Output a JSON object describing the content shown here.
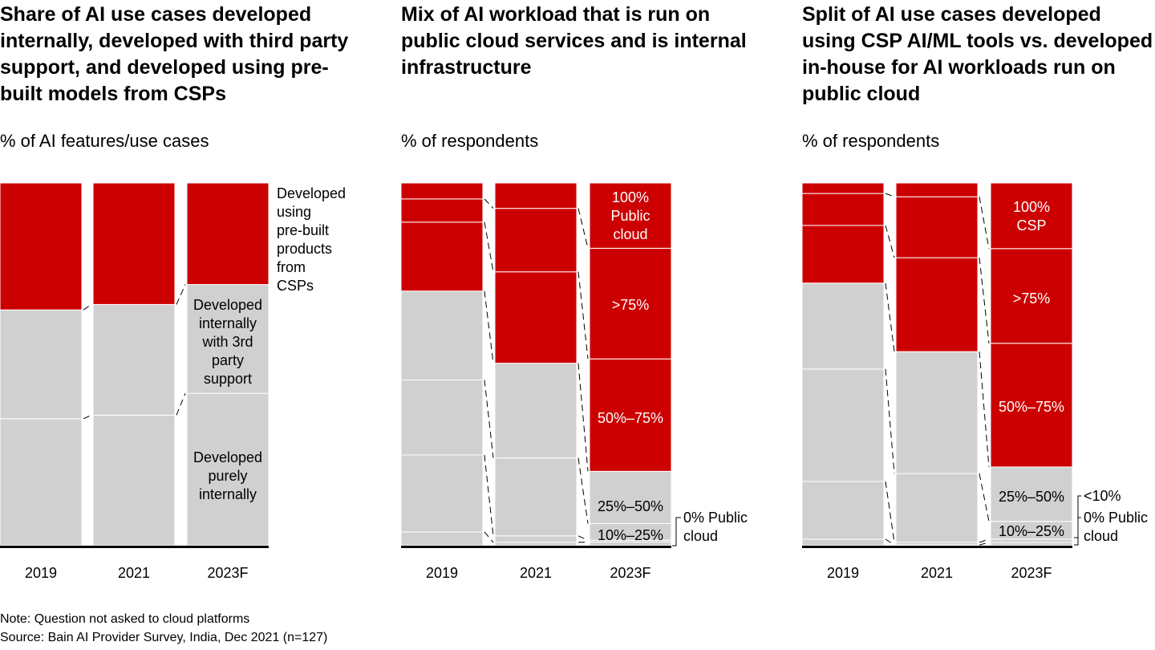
{
  "colors": {
    "red": "#cc0000",
    "gray": "#d0d0d0"
  },
  "notes": {
    "note": "Note: Question not asked to cloud platforms",
    "source": "Source: Bain AI Provider Survey, India, Dec 2021 (n=127)"
  },
  "chart_data": [
    {
      "type": "bar",
      "stacked": true,
      "normalized": true,
      "title": "Share of AI use cases developed internally, developed with third party support, and developed using pre-built models from CSPs",
      "ylabel": "% of AI features/use cases",
      "categories": [
        "2019",
        "2021",
        "2023F"
      ],
      "series": [
        {
          "name": "Developed purely internally",
          "color": "#d0d0d0",
          "values": [
            35,
            36,
            42
          ]
        },
        {
          "name": "Developed internally with 3rd party support",
          "color": "#d0d0d0",
          "values": [
            30,
            30.5,
            30
          ]
        },
        {
          "name": "Developed using pre-built products from CSPs",
          "color": "#cc0000",
          "values": [
            35,
            33.5,
            28
          ]
        }
      ]
    },
    {
      "type": "bar",
      "stacked": true,
      "normalized": true,
      "title": "Mix of AI workload that is run on public cloud services and is internal infrastructure",
      "ylabel": "% of respondents",
      "categories": [
        "2019",
        "2021",
        "2023F"
      ],
      "series": [
        {
          "name": "0% Public cloud",
          "color": "#d0d0d0",
          "values": [
            3.8,
            0.9,
            1
          ]
        },
        {
          "name": "<10%",
          "color": "#d0d0d0",
          "values": [
            21.2,
            1.8,
            0.5
          ]
        },
        {
          "name": "10%–25%",
          "color": "#d0d0d0",
          "values": [
            20.7,
            21.5,
            4.6
          ]
        },
        {
          "name": "25%–50%",
          "color": "#d0d0d0",
          "values": [
            24.5,
            26.1,
            14.4
          ]
        },
        {
          "name": "50%–75%",
          "color": "#cc0000",
          "values": [
            19,
            25.2,
            31
          ]
        },
        {
          "name": ">75%",
          "color": "#cc0000",
          "values": [
            6.4,
            17.5,
            30.5
          ]
        },
        {
          "name": "100% Public cloud",
          "color": "#cc0000",
          "values": [
            4.4,
            7,
            18
          ]
        }
      ]
    },
    {
      "type": "bar",
      "stacked": true,
      "normalized": true,
      "title": "Split of AI use cases developed using CSP AI/ML tools vs. developed in-house for AI workloads run on public cloud",
      "ylabel": "% of respondents",
      "categories": [
        "2019",
        "2021",
        "2023F"
      ],
      "series": [
        {
          "name": "0% Public cloud",
          "color": "#d0d0d0",
          "values": [
            1.8,
            0.2,
            0.9
          ]
        },
        {
          "name": "<10%",
          "color": "#d0d0d0",
          "values": [
            15.9,
            0.7,
            0.9
          ]
        },
        {
          "name": "10%–25%",
          "color": "#d0d0d0",
          "values": [
            31,
            19,
            4.9
          ]
        },
        {
          "name": "25%–50%",
          "color": "#d0d0d0",
          "values": [
            23.7,
            33.6,
            15
          ]
        },
        {
          "name": "50%–75%",
          "color": "#cc0000",
          "values": [
            15.9,
            25.9,
            34.1
          ]
        },
        {
          "name": ">75%",
          "color": "#cc0000",
          "values": [
            8.8,
            16.8,
            26.1
          ]
        },
        {
          "name": "100% CSP",
          "color": "#cc0000",
          "values": [
            2.9,
            3.8,
            18.1
          ]
        }
      ]
    }
  ],
  "labels": {
    "c1": [
      "Developed using pre-built products from CSPs",
      "Developed internally with 3rd party support",
      "Developed purely internally"
    ],
    "c2": [
      "100% Public cloud",
      ">75%",
      "50%–75%",
      "25%–50%",
      "10%–25%",
      "0% Public cloud"
    ],
    "c3": [
      "100% CSP",
      ">75%",
      "50%–75%",
      "25%–50%",
      "10%–25%",
      "<10%",
      "0% Public cloud"
    ]
  }
}
